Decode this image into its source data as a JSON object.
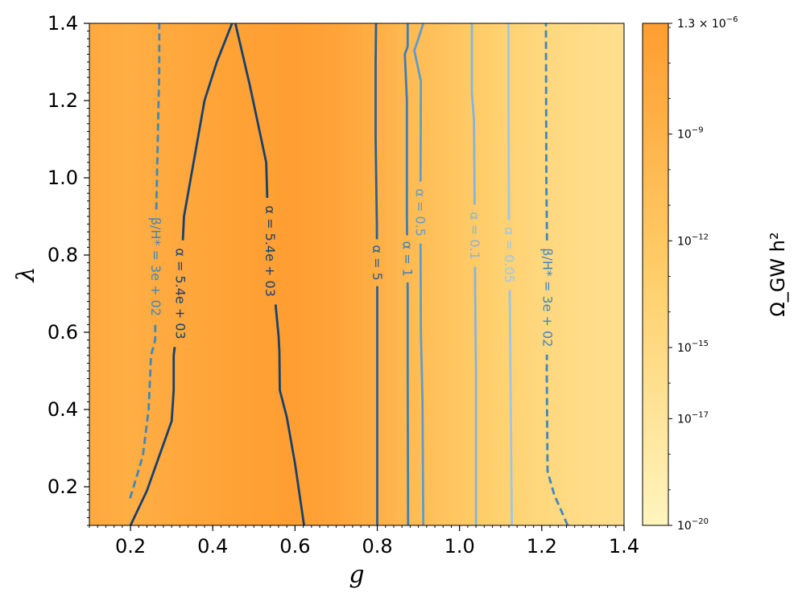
{
  "chart_data": {
    "type": "heatmap",
    "xlabel": "g",
    "ylabel": "λ",
    "xlim": [
      0.1,
      1.4
    ],
    "ylim": [
      0.1,
      1.4
    ],
    "xticks": [
      0.2,
      0.4,
      0.6,
      0.8,
      1.0,
      1.2,
      1.4
    ],
    "xtick_labels": [
      "0.2",
      "0.4",
      "0.6",
      "0.8",
      "1.0",
      "1.2",
      "1.4"
    ],
    "yticks": [
      0.2,
      0.4,
      0.6,
      0.8,
      1.0,
      1.2,
      1.4
    ],
    "ytick_labels": [
      "0.2",
      "0.4",
      "0.6",
      "0.8",
      "1.0",
      "1.2",
      "1.4"
    ],
    "heatmap": {
      "quantity": "log10 Ω_GW h²",
      "g_columns": [
        0.1,
        0.2,
        0.3,
        0.4,
        0.5,
        0.6,
        0.7,
        0.8,
        0.9,
        1.0,
        1.1,
        1.2,
        1.3,
        1.4
      ],
      "log10_values": [
        -7.6,
        -8.4,
        -7.6,
        -6.9,
        -6.4,
        -6.1,
        -6.9,
        -8.5,
        -10.5,
        -12.0,
        -13.5,
        -14.6,
        -15.4,
        -16.0
      ]
    },
    "colorbar": {
      "label": "Ω_GW h²",
      "range_log10": [
        -20,
        -5.886
      ],
      "tick_log10": [
        -5.886,
        -9,
        -12,
        -15,
        -17,
        -20
      ],
      "tick_labels": [
        {
          "base": "1.3 × 10",
          "exp": "−6"
        },
        {
          "base": "10",
          "exp": "−9"
        },
        {
          "base": "10",
          "exp": "−12"
        },
        {
          "base": "10",
          "exp": "−15"
        },
        {
          "base": "10",
          "exp": "−17"
        },
        {
          "base": "10",
          "exp": "−20"
        }
      ],
      "colors": {
        "low": "#fff5bd",
        "mid": "#ffce6a",
        "high": "#ff9d30"
      }
    },
    "contours": [
      {
        "label": "β/H* = 3e + 02",
        "color": "#3f87bd",
        "dashed": true,
        "g": [
          0.199,
          0.23,
          0.244,
          0.25,
          0.26,
          0.262,
          0.262,
          0.27,
          0.27
        ],
        "lambda": [
          0.17,
          0.28,
          0.4,
          0.54,
          0.58,
          0.78,
          0.88,
          1.28,
          1.4
        ],
        "label_lambda": 0.77
      },
      {
        "label": "α = 5.4e + 03",
        "color": "#16416f",
        "dashed": false,
        "g": [
          0.2,
          0.24,
          0.27,
          0.3,
          0.305,
          0.305,
          0.32,
          0.33,
          0.36,
          0.38,
          0.41,
          0.447
        ],
        "lambda": [
          0.1,
          0.19,
          0.28,
          0.37,
          0.45,
          0.54,
          0.67,
          0.9,
          1.08,
          1.2,
          1.3,
          1.4
        ],
        "label_lambda": 0.7
      },
      {
        "label": "α = 5.4e + 03",
        "color": "#16416f",
        "dashed": false,
        "g": [
          0.455,
          0.49,
          0.53,
          0.535,
          0.55,
          0.56,
          0.562,
          0.563,
          0.58,
          0.6,
          0.622
        ],
        "lambda": [
          1.4,
          1.24,
          1.04,
          0.86,
          0.7,
          0.59,
          0.55,
          0.45,
          0.38,
          0.26,
          0.1
        ],
        "label_lambda": 0.81
      },
      {
        "label": "α = 5",
        "color": "#2a5f96",
        "dashed": false,
        "g": [
          0.8,
          0.8,
          0.8,
          0.799,
          0.796,
          0.796,
          0.797
        ],
        "lambda": [
          0.1,
          0.5,
          0.7,
          0.88,
          1.1,
          1.3,
          1.4
        ],
        "label_lambda": 0.78
      },
      {
        "label": "α = 1",
        "color": "#3c7fb6",
        "dashed": false,
        "g": [
          0.875,
          0.874,
          0.874,
          0.872,
          0.872,
          0.867,
          0.874,
          0.874
        ],
        "lambda": [
          0.1,
          0.5,
          0.7,
          0.9,
          1.2,
          1.32,
          1.34,
          1.4
        ],
        "label_lambda": 0.79
      },
      {
        "label": "α = 0.5",
        "color": "#5f9cc9",
        "dashed": false,
        "g": [
          0.912,
          0.91,
          0.906,
          0.905,
          0.906,
          0.89,
          0.9,
          0.912
        ],
        "lambda": [
          0.1,
          0.42,
          0.6,
          0.9,
          1.25,
          1.33,
          1.36,
          1.4
        ],
        "label_lambda": 0.91
      },
      {
        "label": "α = 0.1",
        "color": "#84b5dc",
        "dashed": false,
        "g": [
          1.04,
          1.04,
          1.038,
          1.037,
          1.035,
          1.03,
          1.03,
          1.03
        ],
        "lambda": [
          0.1,
          0.5,
          0.7,
          0.9,
          1.15,
          1.22,
          1.3,
          1.4
        ],
        "label_lambda": 0.85
      },
      {
        "label": "α = 0.05",
        "color": "#9fc6e6",
        "dashed": false,
        "g": [
          1.127,
          1.126,
          1.124,
          1.12,
          1.119,
          1.119
        ],
        "lambda": [
          0.1,
          0.25,
          0.5,
          0.9,
          1.2,
          1.4
        ],
        "label_lambda": 0.8
      },
      {
        "label": "β/H* = 3e + 02",
        "color": "#3f87bd",
        "dashed": true,
        "g": [
          1.263,
          1.23,
          1.214,
          1.212,
          1.214,
          1.211,
          1.21
        ],
        "lambda": [
          0.1,
          0.18,
          0.24,
          0.5,
          0.7,
          1.0,
          1.4
        ],
        "label_lambda": 0.69
      }
    ]
  }
}
